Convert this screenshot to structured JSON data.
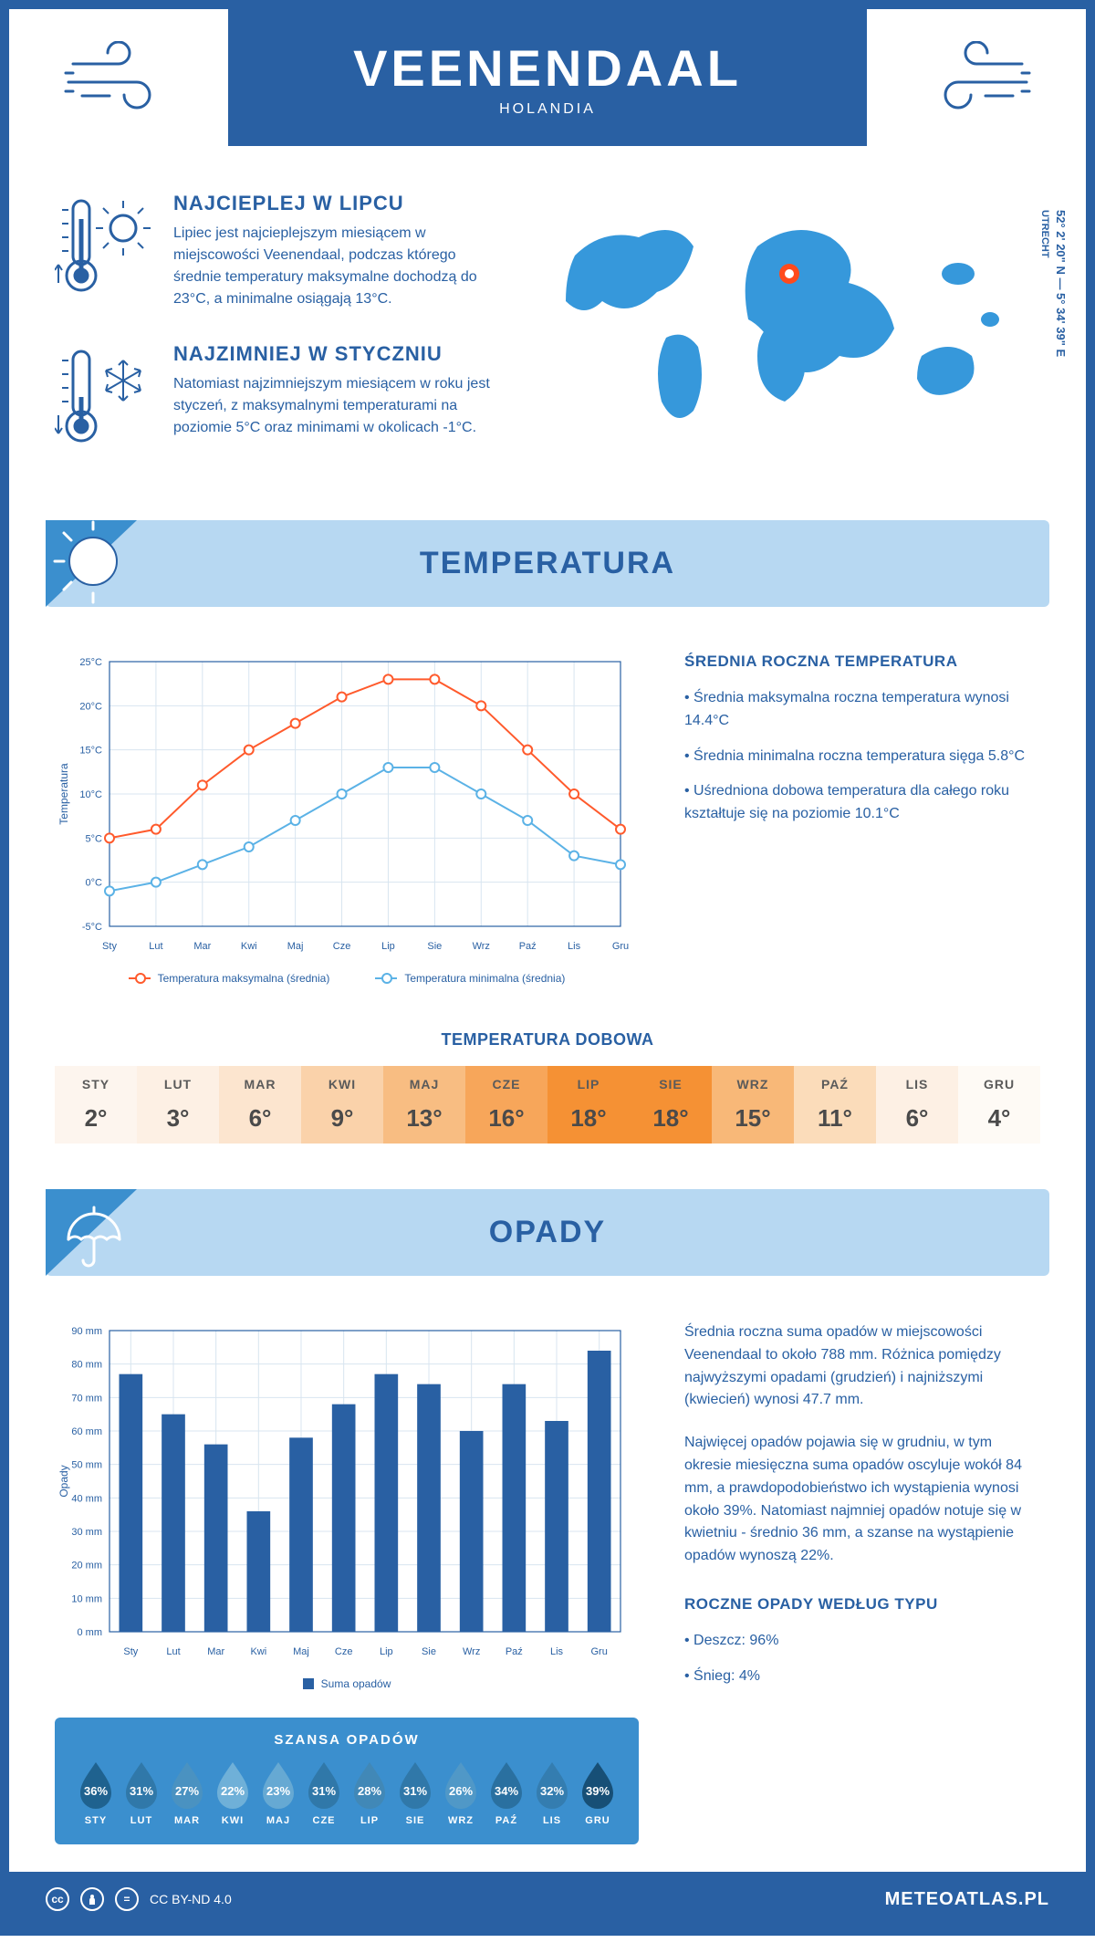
{
  "header": {
    "city": "VEENENDAAL",
    "country": "HOLANDIA"
  },
  "location": {
    "coords": "52° 2' 20\" N — 5° 34' 39\" E",
    "region": "UTRECHT",
    "pin_color": "#ff4a1c",
    "map_color": "#3698db"
  },
  "facts": {
    "warmest": {
      "title": "NAJCIEPLEJ W LIPCU",
      "text": "Lipiec jest najcieplejszym miesiącem w miejscowości Veenendaal, podczas którego średnie temperatury maksymalne dochodzą do 23°C, a minimalne osiągają 13°C."
    },
    "coldest": {
      "title": "NAJZIMNIEJ W STYCZNIU",
      "text": "Natomiast najzimniejszym miesiącem w roku jest styczeń, z maksymalnymi temperaturami na poziomie 5°C oraz minimami w okolicach -1°C."
    }
  },
  "sections": {
    "temperature": "TEMPERATURA",
    "precipitation": "OPADY"
  },
  "temp_chart": {
    "type": "line",
    "months": [
      "Sty",
      "Lut",
      "Mar",
      "Kwi",
      "Maj",
      "Cze",
      "Lip",
      "Sie",
      "Wrz",
      "Paź",
      "Lis",
      "Gru"
    ],
    "series": [
      {
        "name": "Temperatura maksymalna (średnia)",
        "color": "#ff5a2c",
        "values": [
          5,
          6,
          11,
          15,
          18,
          21,
          23,
          23,
          20,
          15,
          10,
          6
        ]
      },
      {
        "name": "Temperatura minimalna (średnia)",
        "color": "#5bb2e6",
        "values": [
          -1,
          0,
          2,
          4,
          7,
          10,
          13,
          13,
          10,
          7,
          3,
          2
        ]
      }
    ],
    "ylabel": "Temperatura",
    "ylim": [
      -5,
      25
    ],
    "ytick_step": 5,
    "ytick_suffix": "°C",
    "grid_color": "#d8e5f0",
    "axis_color": "#2960a3",
    "label_fontsize": 11,
    "line_width": 2,
    "marker": "circle",
    "marker_size": 5,
    "background": "#ffffff"
  },
  "temp_side": {
    "heading": "ŚREDNIA ROCZNA TEMPERATURA",
    "bullets": [
      "Średnia maksymalna roczna temperatura wynosi 14.4°C",
      "Średnia minimalna roczna temperatura sięga 5.8°C",
      "Uśredniona dobowa temperatura dla całego roku kształtuje się na poziomie 10.1°C"
    ]
  },
  "daily": {
    "title": "TEMPERATURA DOBOWA",
    "months": [
      "STY",
      "LUT",
      "MAR",
      "KWI",
      "MAJ",
      "CZE",
      "LIP",
      "SIE",
      "WRZ",
      "PAŹ",
      "LIS",
      "GRU"
    ],
    "values": [
      "2°",
      "3°",
      "6°",
      "9°",
      "13°",
      "16°",
      "18°",
      "18°",
      "15°",
      "11°",
      "6°",
      "4°"
    ],
    "colors": [
      "#fdf5ee",
      "#fdf0e4",
      "#fce5cf",
      "#fad2aa",
      "#f8bd82",
      "#f7a65a",
      "#f59134",
      "#f59134",
      "#f8b878",
      "#fbdcba",
      "#fdf0e4",
      "#fefaf5"
    ]
  },
  "precip_chart": {
    "type": "bar",
    "months": [
      "Sty",
      "Lut",
      "Mar",
      "Kwi",
      "Maj",
      "Cze",
      "Lip",
      "Sie",
      "Wrz",
      "Paź",
      "Lis",
      "Gru"
    ],
    "values": [
      77,
      65,
      56,
      36,
      58,
      68,
      77,
      74,
      60,
      74,
      63,
      84
    ],
    "bar_color": "#2960a3",
    "bar_width": 0.55,
    "ylabel": "Opady",
    "ylim": [
      0,
      90
    ],
    "ytick_step": 10,
    "ytick_suffix": " mm",
    "grid_color": "#d8e5f0",
    "axis_color": "#2960a3",
    "legend": "Suma opadów",
    "background": "#ffffff"
  },
  "precip_side": {
    "paras": [
      "Średnia roczna suma opadów w miejscowości Veenendaal to około 788 mm. Różnica pomiędzy najwyższymi opadami (grudzień) i najniższymi (kwiecień) wynosi 47.7 mm.",
      "Najwięcej opadów pojawia się w grudniu, w tym okresie miesięczna suma opadów oscyluje wokół 84 mm, a prawdopodobieństwo ich wystąpienia wynosi około 39%. Natomiast najmniej opadów notuje się w kwietniu - średnio 36 mm, a szanse na wystąpienie opadów wynoszą 22%."
    ],
    "type_heading": "ROCZNE OPADY WEDŁUG TYPU",
    "type_bullets": [
      "Deszcz: 96%",
      "Śnieg: 4%"
    ]
  },
  "chance": {
    "title": "SZANSA OPADÓW",
    "months": [
      "STY",
      "LUT",
      "MAR",
      "KWI",
      "MAJ",
      "CZE",
      "LIP",
      "SIE",
      "WRZ",
      "PAŹ",
      "LIS",
      "GRU"
    ],
    "values": [
      "36%",
      "31%",
      "27%",
      "22%",
      "23%",
      "31%",
      "28%",
      "31%",
      "26%",
      "34%",
      "32%",
      "39%"
    ],
    "colors": [
      "#1f628f",
      "#3078a9",
      "#4a92c1",
      "#6fb0d8",
      "#66a9d3",
      "#3078a9",
      "#4188b7",
      "#3078a9",
      "#5098c7",
      "#2a70a0",
      "#347db0",
      "#174f76"
    ],
    "box_bg": "#3b8fce"
  },
  "footer": {
    "license": "CC BY-ND 4.0",
    "site": "METEOATLAS.PL"
  },
  "palette": {
    "primary": "#2960a3",
    "section_bg": "#b7d8f2",
    "stroke": "#2960a3"
  }
}
